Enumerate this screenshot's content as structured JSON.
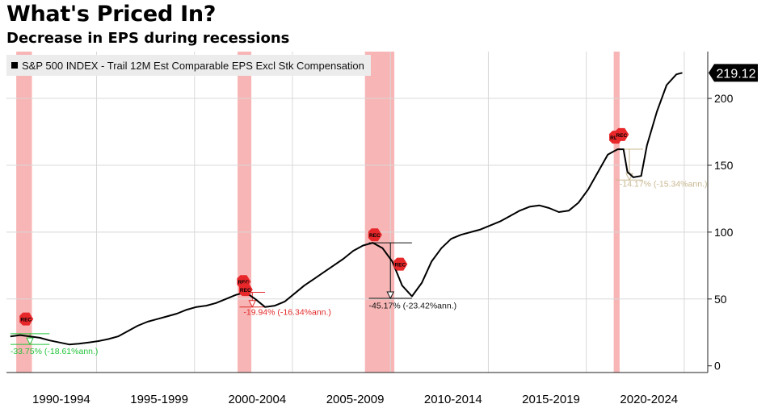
{
  "title": "What's Priced In?",
  "subtitle": "Decrease in EPS during recessions",
  "colors": {
    "line": "#000000",
    "recession_band": "#f7a8a8",
    "rec_marker": "#e8272a",
    "drop_green": "#23c43a",
    "drop_red": "#e22a2a",
    "drop_black": "#111111",
    "drop_tan": "#c8b890",
    "grid": "#d8d8d8"
  },
  "chart_data": {
    "type": "line",
    "title": "What's Priced In?",
    "subtitle": "Decrease in EPS during recessions",
    "series": [
      {
        "name": "S&P 500 INDEX - Trail 12M Est Comparable EPS Excl Stk Compensation",
        "points": [
          [
            1989.0,
            22
          ],
          [
            1989.5,
            23
          ],
          [
            1990.0,
            22
          ],
          [
            1990.5,
            21
          ],
          [
            1991.0,
            19
          ],
          [
            1991.5,
            17.5
          ],
          [
            1992.0,
            16
          ],
          [
            1992.5,
            16.5
          ],
          [
            1993.0,
            17.5
          ],
          [
            1993.5,
            18.5
          ],
          [
            1994.0,
            20
          ],
          [
            1994.5,
            22
          ],
          [
            1995.0,
            26
          ],
          [
            1995.5,
            30
          ],
          [
            1996.0,
            33
          ],
          [
            1996.5,
            35
          ],
          [
            1997.0,
            37
          ],
          [
            1997.5,
            39
          ],
          [
            1998.0,
            42
          ],
          [
            1998.5,
            44
          ],
          [
            1999.0,
            45
          ],
          [
            1999.5,
            47
          ],
          [
            2000.0,
            50
          ],
          [
            2000.5,
            53
          ],
          [
            2001.0,
            55
          ],
          [
            2001.5,
            50
          ],
          [
            2002.0,
            44
          ],
          [
            2002.5,
            45
          ],
          [
            2003.0,
            48
          ],
          [
            2003.5,
            54
          ],
          [
            2004.0,
            60
          ],
          [
            2004.5,
            65
          ],
          [
            2005.0,
            70
          ],
          [
            2005.5,
            75
          ],
          [
            2006.0,
            80
          ],
          [
            2006.5,
            86
          ],
          [
            2007.0,
            90
          ],
          [
            2007.5,
            92
          ],
          [
            2008.0,
            88
          ],
          [
            2008.5,
            78
          ],
          [
            2009.0,
            60
          ],
          [
            2009.5,
            52
          ],
          [
            2010.0,
            62
          ],
          [
            2010.5,
            78
          ],
          [
            2011.0,
            88
          ],
          [
            2011.5,
            95
          ],
          [
            2012.0,
            98
          ],
          [
            2012.5,
            100
          ],
          [
            2013.0,
            102
          ],
          [
            2013.5,
            105
          ],
          [
            2014.0,
            108
          ],
          [
            2014.5,
            112
          ],
          [
            2015.0,
            116
          ],
          [
            2015.5,
            119
          ],
          [
            2016.0,
            120
          ],
          [
            2016.5,
            118
          ],
          [
            2017.0,
            115
          ],
          [
            2017.5,
            116
          ],
          [
            2018.0,
            122
          ],
          [
            2018.5,
            132
          ],
          [
            2019.0,
            145
          ],
          [
            2019.5,
            158
          ],
          [
            2020.0,
            162
          ],
          [
            2020.3,
            162
          ],
          [
            2020.5,
            145
          ],
          [
            2020.8,
            141
          ],
          [
            2021.2,
            142
          ],
          [
            2021.5,
            165
          ],
          [
            2022.0,
            190
          ],
          [
            2022.5,
            210
          ],
          [
            2023.0,
            218
          ],
          [
            2023.3,
            219.12
          ]
        ]
      }
    ],
    "last_value_label": "219.12",
    "xlim": [
      1988.8,
      2024.6
    ],
    "ylim": [
      -5,
      235
    ],
    "yticks": [
      0,
      50,
      100,
      150,
      200
    ],
    "ytick_labels": [
      "0",
      "50",
      "100",
      "150",
      "200"
    ],
    "x_categories": [
      {
        "label": "1990-1994",
        "center": 1991.6
      },
      {
        "label": "1995-1999",
        "center": 1996.6
      },
      {
        "label": "2000-2004",
        "center": 2001.6
      },
      {
        "label": "2005-2009",
        "center": 2006.6
      },
      {
        "label": "2010-2014",
        "center": 2011.6
      },
      {
        "label": "2015-2019",
        "center": 2016.6
      },
      {
        "label": "2020-2024",
        "center": 2021.6
      }
    ],
    "grid_x": [
      1993.4,
      1998.4,
      2003.4,
      2008.4,
      2013.4,
      2018.4,
      2023.4
    ],
    "grid_y": [
      50,
      100,
      150,
      200
    ],
    "recessions": [
      {
        "start": 1989.3,
        "end": 1990.1
      },
      {
        "start": 2000.6,
        "end": 2001.3
      },
      {
        "start": 2007.1,
        "end": 2008.6
      },
      {
        "start": 2019.8,
        "end": 2020.1
      }
    ],
    "rec_markers": [
      {
        "x": 1989.8,
        "y": 35,
        "label": "REC"
      },
      {
        "x": 2000.9,
        "y": 63,
        "label": "REC"
      },
      {
        "x": 2001.0,
        "y": 57,
        "label": "REC"
      },
      {
        "x": 2007.6,
        "y": 98,
        "label": "REC"
      },
      {
        "x": 2008.9,
        "y": 76,
        "label": "REC"
      },
      {
        "x": 2019.9,
        "y": 171,
        "label": "REC"
      },
      {
        "x": 2020.2,
        "y": 173,
        "label": "REC"
      }
    ],
    "annotations": [
      {
        "text": "-33.75% (-18.61%ann.)",
        "x": 1989.0,
        "y": 9,
        "color": "green",
        "from_y": 24,
        "to_y": 16,
        "x_start": 1989.0,
        "x_end": 1991.0
      },
      {
        "text": "-19.94% (-16.34%ann.)",
        "x": 2000.9,
        "y": 38,
        "color": "red",
        "from_y": 55,
        "to_y": 44,
        "x_start": 2000.7,
        "x_end": 2002.0
      },
      {
        "text": "-45.17% (-23.42%ann.)",
        "x": 2007.3,
        "y": 43,
        "color": "black",
        "from_y": 92,
        "to_y": 50.5,
        "x_start": 2007.3,
        "x_end": 2009.5
      },
      {
        "text": "-14.17% (-15.34%ann.)",
        "x": 2020.1,
        "y": 134,
        "color": "tan",
        "from_y": 162,
        "to_y": 139,
        "x_start": 2019.9,
        "x_end": 2021.3
      }
    ]
  }
}
